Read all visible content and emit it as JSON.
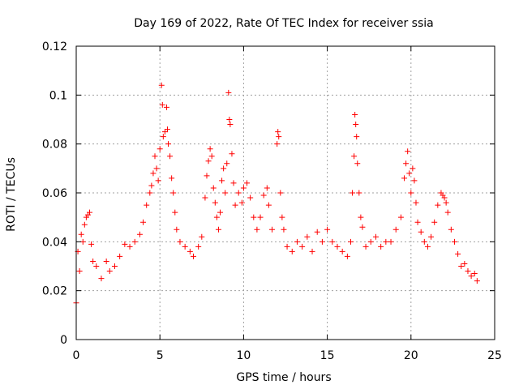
{
  "chart_data": {
    "type": "scatter",
    "title": "Day 169 of 2022, Rate Of TEC Index for receiver ssia",
    "xlabel": "GPS time / hours",
    "ylabel": "ROTI / TECUs",
    "xlim": [
      0,
      25
    ],
    "ylim": [
      0,
      0.12
    ],
    "xticks": [
      0,
      5,
      10,
      15,
      20,
      25
    ],
    "xtick_labels": [
      "0",
      "5",
      "10",
      "15",
      "20",
      "25"
    ],
    "yticks": [
      0,
      0.02,
      0.04,
      0.06,
      0.08,
      0.1,
      0.12
    ],
    "ytick_labels": [
      "0",
      "0.02",
      "0.04",
      "0.06",
      "0.08",
      "0.1",
      "0.12"
    ],
    "grid": true,
    "marker": "+",
    "color": "#ff0000",
    "series": [
      {
        "name": "ROTI",
        "points": [
          [
            0.0,
            0.015
          ],
          [
            0.1,
            0.036
          ],
          [
            0.2,
            0.028
          ],
          [
            0.3,
            0.043
          ],
          [
            0.4,
            0.04
          ],
          [
            0.5,
            0.047
          ],
          [
            0.6,
            0.05
          ],
          [
            0.7,
            0.051
          ],
          [
            0.8,
            0.052
          ],
          [
            0.9,
            0.039
          ],
          [
            1.0,
            0.032
          ],
          [
            1.2,
            0.03
          ],
          [
            1.5,
            0.025
          ],
          [
            1.8,
            0.032
          ],
          [
            2.0,
            0.028
          ],
          [
            2.3,
            0.03
          ],
          [
            2.6,
            0.034
          ],
          [
            2.9,
            0.039
          ],
          [
            3.2,
            0.038
          ],
          [
            3.5,
            0.04
          ],
          [
            3.8,
            0.043
          ],
          [
            4.0,
            0.048
          ],
          [
            4.2,
            0.055
          ],
          [
            4.4,
            0.06
          ],
          [
            4.5,
            0.063
          ],
          [
            4.6,
            0.068
          ],
          [
            4.7,
            0.075
          ],
          [
            4.8,
            0.07
          ],
          [
            4.9,
            0.065
          ],
          [
            5.0,
            0.078
          ],
          [
            5.1,
            0.104
          ],
          [
            5.15,
            0.096
          ],
          [
            5.2,
            0.083
          ],
          [
            5.3,
            0.085
          ],
          [
            5.4,
            0.095
          ],
          [
            5.45,
            0.086
          ],
          [
            5.5,
            0.08
          ],
          [
            5.6,
            0.075
          ],
          [
            5.7,
            0.066
          ],
          [
            5.8,
            0.06
          ],
          [
            5.9,
            0.052
          ],
          [
            6.0,
            0.045
          ],
          [
            6.2,
            0.04
          ],
          [
            6.5,
            0.038
          ],
          [
            6.8,
            0.036
          ],
          [
            7.0,
            0.034
          ],
          [
            7.3,
            0.038
          ],
          [
            7.5,
            0.042
          ],
          [
            7.7,
            0.058
          ],
          [
            7.8,
            0.067
          ],
          [
            7.9,
            0.073
          ],
          [
            8.0,
            0.078
          ],
          [
            8.1,
            0.075
          ],
          [
            8.2,
            0.062
          ],
          [
            8.3,
            0.056
          ],
          [
            8.4,
            0.05
          ],
          [
            8.5,
            0.045
          ],
          [
            8.6,
            0.052
          ],
          [
            8.7,
            0.065
          ],
          [
            8.8,
            0.07
          ],
          [
            8.9,
            0.06
          ],
          [
            9.0,
            0.072
          ],
          [
            9.1,
            0.101
          ],
          [
            9.15,
            0.09
          ],
          [
            9.2,
            0.088
          ],
          [
            9.3,
            0.076
          ],
          [
            9.4,
            0.064
          ],
          [
            9.5,
            0.055
          ],
          [
            9.7,
            0.06
          ],
          [
            9.9,
            0.056
          ],
          [
            10.0,
            0.062
          ],
          [
            10.2,
            0.064
          ],
          [
            10.4,
            0.058
          ],
          [
            10.6,
            0.05
          ],
          [
            10.8,
            0.045
          ],
          [
            11.0,
            0.05
          ],
          [
            11.2,
            0.059
          ],
          [
            11.4,
            0.062
          ],
          [
            11.5,
            0.055
          ],
          [
            11.7,
            0.045
          ],
          [
            12.0,
            0.08
          ],
          [
            12.05,
            0.085
          ],
          [
            12.1,
            0.083
          ],
          [
            12.2,
            0.06
          ],
          [
            12.3,
            0.05
          ],
          [
            12.4,
            0.045
          ],
          [
            12.6,
            0.038
          ],
          [
            12.9,
            0.036
          ],
          [
            13.2,
            0.04
          ],
          [
            13.5,
            0.038
          ],
          [
            13.8,
            0.042
          ],
          [
            14.1,
            0.036
          ],
          [
            14.4,
            0.044
          ],
          [
            14.7,
            0.04
          ],
          [
            15.0,
            0.045
          ],
          [
            15.3,
            0.04
          ],
          [
            15.6,
            0.038
          ],
          [
            15.9,
            0.036
          ],
          [
            16.2,
            0.034
          ],
          [
            16.4,
            0.04
          ],
          [
            16.5,
            0.06
          ],
          [
            16.6,
            0.075
          ],
          [
            16.65,
            0.092
          ],
          [
            16.7,
            0.088
          ],
          [
            16.75,
            0.083
          ],
          [
            16.8,
            0.072
          ],
          [
            16.9,
            0.06
          ],
          [
            17.0,
            0.05
          ],
          [
            17.1,
            0.046
          ],
          [
            17.3,
            0.038
          ],
          [
            17.6,
            0.04
          ],
          [
            17.9,
            0.042
          ],
          [
            18.2,
            0.038
          ],
          [
            18.5,
            0.04
          ],
          [
            18.8,
            0.04
          ],
          [
            19.1,
            0.045
          ],
          [
            19.4,
            0.05
          ],
          [
            19.6,
            0.066
          ],
          [
            19.7,
            0.072
          ],
          [
            19.8,
            0.077
          ],
          [
            19.9,
            0.068
          ],
          [
            20.0,
            0.06
          ],
          [
            20.1,
            0.07
          ],
          [
            20.2,
            0.065
          ],
          [
            20.3,
            0.056
          ],
          [
            20.4,
            0.048
          ],
          [
            20.6,
            0.044
          ],
          [
            20.8,
            0.04
          ],
          [
            21.0,
            0.038
          ],
          [
            21.2,
            0.042
          ],
          [
            21.4,
            0.048
          ],
          [
            21.6,
            0.055
          ],
          [
            21.8,
            0.06
          ],
          [
            21.9,
            0.059
          ],
          [
            22.0,
            0.058
          ],
          [
            22.1,
            0.056
          ],
          [
            22.2,
            0.052
          ],
          [
            22.4,
            0.045
          ],
          [
            22.6,
            0.04
          ],
          [
            22.8,
            0.035
          ],
          [
            23.0,
            0.03
          ],
          [
            23.2,
            0.031
          ],
          [
            23.4,
            0.028
          ],
          [
            23.6,
            0.026
          ],
          [
            23.8,
            0.027
          ],
          [
            23.95,
            0.024
          ]
        ]
      }
    ]
  }
}
